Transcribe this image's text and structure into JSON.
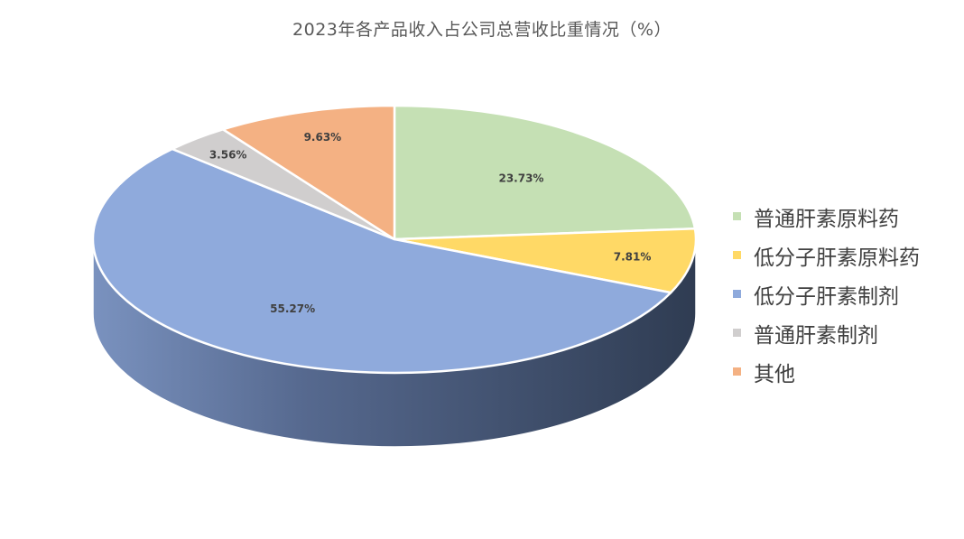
{
  "chart_data": {
    "type": "pie",
    "title": "2023年各产品收入占公司总营收比重情况（%）",
    "unit": "%",
    "categories": [
      "普通肝素原料药",
      "低分子肝素原料药",
      "低分子肝素制剂",
      "普通肝素制剂",
      "其他"
    ],
    "values": [
      23.73,
      7.81,
      55.27,
      3.56,
      9.63
    ],
    "labels": [
      "23.73%",
      "7.81%",
      "55.27%",
      "3.56%",
      "9.63%"
    ],
    "colors": [
      "#c5e0b4",
      "#ffd966",
      "#8faadc",
      "#d0cece",
      "#f4b183"
    ],
    "side_color": "#3a4a66",
    "legend_position": "right",
    "style": "3d-pie"
  }
}
